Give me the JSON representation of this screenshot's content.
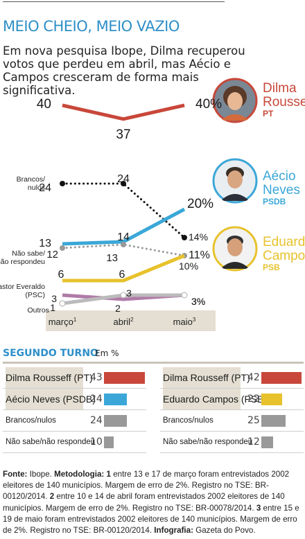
{
  "header": {
    "title": "MEIO CHEIO, MEIO VAZIO",
    "subtitle": "Em nova pesquisa Ibope, Dilma recuperou votos que perdeu em abril, mas Aécio e Campos cresceram de forma mais significativa."
  },
  "candidates": [
    {
      "first": "Dilma",
      "last": "Rousseff",
      "party": "PT",
      "color": "#c8473a"
    },
    {
      "first": "Aécio",
      "last": "Neves",
      "party": "PSDB",
      "color": "#3ba7d8"
    },
    {
      "first": "Eduardo",
      "last": "Campos",
      "party": "PSB",
      "color": "#e7c22c"
    }
  ],
  "chart_data": {
    "type": "line",
    "categories": [
      "março",
      "abril",
      "maio"
    ],
    "category_superscripts": [
      "1",
      "2",
      "3"
    ],
    "series": [
      {
        "name": "Dilma Rousseff",
        "values": [
          40,
          37,
          40
        ],
        "labels": [
          "40",
          "37",
          "40%"
        ],
        "color": "#c8473a",
        "style": "solid"
      },
      {
        "name": "Brancos/ nulos",
        "values": [
          24,
          24,
          14
        ],
        "labels": [
          "24",
          "24",
          "14%"
        ],
        "color": "#111111",
        "style": "dotted"
      },
      {
        "name": "Aécio Neves",
        "values": [
          13,
          14,
          20
        ],
        "labels": [
          "13",
          "14",
          "20%"
        ],
        "color": "#3ba7d8",
        "style": "solid"
      },
      {
        "name": "Não sabe/ não respondeu",
        "values": [
          12,
          13,
          10
        ],
        "labels": [
          "12",
          "13",
          "10%"
        ],
        "color": "#999999",
        "style": "dotted"
      },
      {
        "name": "Eduardo Campos",
        "values": [
          6,
          6,
          11
        ],
        "labels": [
          "6",
          "6",
          "11%"
        ],
        "color": "#e7c22c",
        "style": "solid"
      },
      {
        "name": "Pastor Everaldo (PSC)",
        "values": [
          3,
          2,
          3
        ],
        "labels": [
          "3",
          "2",
          "3%"
        ],
        "color": "#b07aa8",
        "style": "solid"
      },
      {
        "name": "Outros",
        "values": [
          1,
          3,
          3
        ],
        "labels": [
          "1",
          "3",
          "3%"
        ],
        "color": "#bbbbbb",
        "style": "solid"
      }
    ]
  },
  "segundo_turno": {
    "title": "SEGUNDO TURNO",
    "unit": "Em %",
    "tables": [
      {
        "rows": [
          {
            "label": "Dilma Rousseff (PT)",
            "value": 43,
            "color": "#c8473a"
          },
          {
            "label": "Aécio Neves (PSDB)",
            "value": 24,
            "color": "#3ba7d8"
          },
          {
            "label": "Brancos/nulos",
            "value": 24,
            "color": "#999999"
          },
          {
            "label": "Não sabe/não respondeu",
            "value": 10,
            "color": "#999999"
          }
        ]
      },
      {
        "rows": [
          {
            "label": "Dilma Rousseff (PT)",
            "value": 42,
            "color": "#c8473a"
          },
          {
            "label": "Eduardo Campos (PSB)",
            "value": 22,
            "color": "#e7c22c"
          },
          {
            "label": "Brancos/nulos",
            "value": 25,
            "color": "#999999"
          },
          {
            "label": "Não sabe/não respondeu",
            "value": 12,
            "color": "#999999"
          }
        ]
      }
    ]
  },
  "footer": {
    "fonte_label": "Fonte:",
    "fonte": "Ibope.",
    "metodologia_label": "Metodologia:",
    "n1": "1",
    "t1": "entre 13 e 17 de março foram entrevistados 2002 eleitores de 140 municípios. Margem de erro de 2%. Registro no TSE: BR-00120/2014.",
    "n2": "2",
    "t2": "entre 10 e 14 de abril foram entrevistados 2002 eleitores de 140 municípios. Margem de erro de 2%. Registro no TSE: BR-00078/2014.",
    "n3": "3",
    "t3": "entre 15 e 19 de maio foram entrevistados 2002 eleitores de 140 municípios. Margem de erro de 2%. Registro no TSE: BR-00120/2014.",
    "infografia_label": "Infografia:",
    "infografia": "Gazeta do Povo."
  }
}
